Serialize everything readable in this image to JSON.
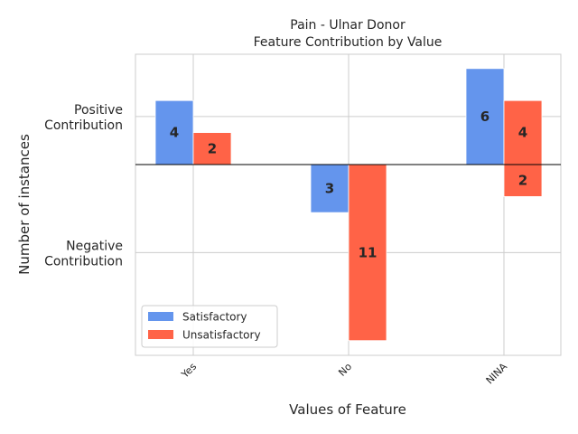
{
  "chart_data": {
    "type": "bar",
    "title": "Pain - Ulnar Donor",
    "subtitle": "Feature Contribution by Value",
    "xlabel": "Values of Feature",
    "ylabel": "Number of instances",
    "categories": [
      "Yes",
      "No",
      "NINA"
    ],
    "ytick_labels": [
      {
        "value": 3,
        "lines": [
          "Positive",
          "Contribution"
        ]
      },
      {
        "value": -5.5,
        "lines": [
          "Negative",
          "Contribution"
        ]
      }
    ],
    "ylim": [
      -11,
      7
    ],
    "grid": true,
    "legend_position": "lower-left",
    "series": [
      {
        "name": "Satisfactory",
        "color": "#6495ED",
        "bars": [
          {
            "category": "Yes",
            "value": 4
          },
          {
            "category": "No",
            "value": -3
          },
          {
            "category": "NINA",
            "value": 6
          }
        ]
      },
      {
        "name": "Unsatisfactory",
        "color": "#FF6347",
        "bars": [
          {
            "category": "Yes",
            "value": 2
          },
          {
            "category": "No",
            "value": -11
          },
          {
            "category": "NINA",
            "value": 4
          },
          {
            "category": "NINA",
            "value": -2
          }
        ]
      }
    ]
  }
}
